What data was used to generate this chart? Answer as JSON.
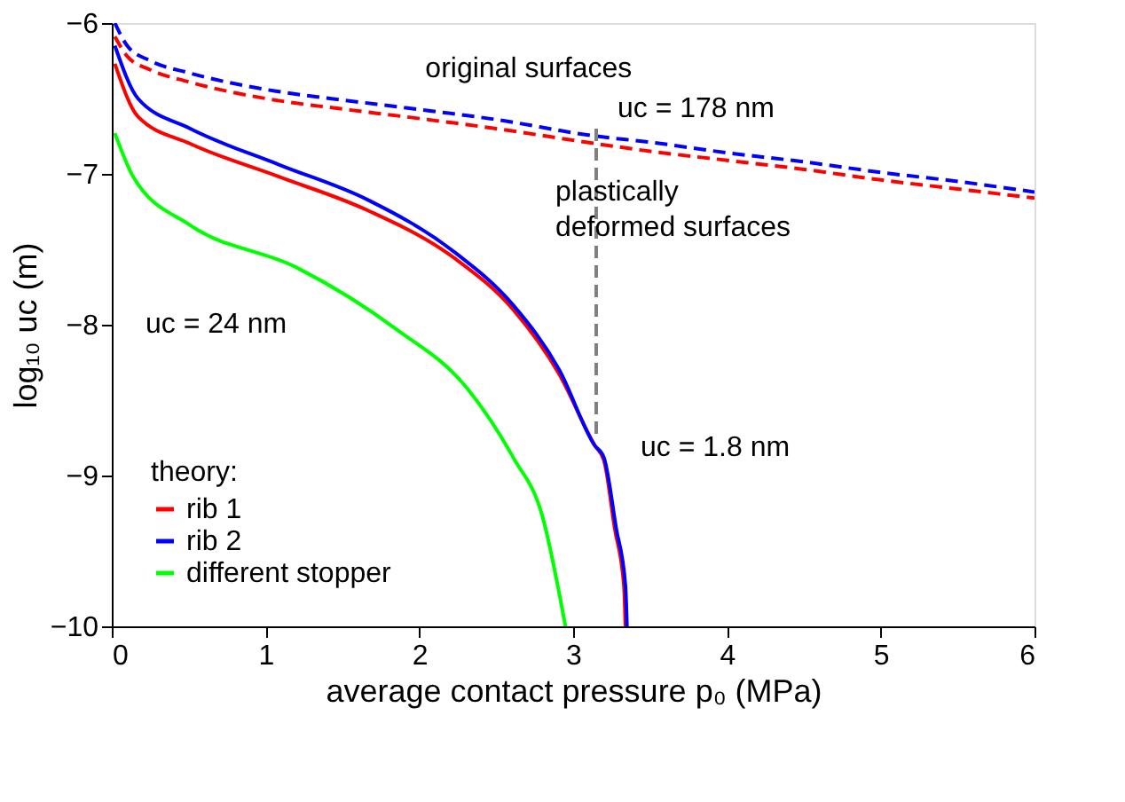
{
  "chart_data": {
    "type": "line",
    "xlabel": "average contact pressure p₀  (MPa)",
    "ylabel": "log₁₀ uc (m)",
    "legend_title": "theory:",
    "xlim": [
      0,
      6
    ],
    "xticks": [
      0,
      1,
      2,
      3,
      4,
      5,
      6
    ],
    "ylim": [
      -10,
      -6
    ],
    "yticks": [
      -10,
      -9,
      -8,
      -7,
      -6
    ],
    "grid": false,
    "legend": "bottom left",
    "marker": "none",
    "series": [
      {
        "name": "rib 1",
        "color": "#ff0000",
        "line_style": "solid",
        "x": [
          0.02,
          0.17,
          0.51,
          1.09,
          1.66,
          2.23,
          2.61,
          2.91,
          3.14,
          3.2,
          3.27,
          3.33,
          3.34
        ],
        "values": [
          -6.27,
          -6.62,
          -6.8,
          -7.02,
          -7.24,
          -7.56,
          -7.9,
          -8.33,
          -8.8,
          -8.9,
          -9.35,
          -9.73,
          -10
        ]
      },
      {
        "name": "rib 2",
        "color": "#0000ff",
        "line_style": "solid",
        "x": [
          0.02,
          0.17,
          0.51,
          1.09,
          1.66,
          2.23,
          2.61,
          2.91,
          3.14,
          3.2,
          3.28,
          3.34,
          3.35
        ],
        "values": [
          -6.15,
          -6.5,
          -6.7,
          -6.94,
          -7.17,
          -7.52,
          -7.87,
          -8.3,
          -8.8,
          -8.88,
          -9.35,
          -9.73,
          -10
        ]
      },
      {
        "name": "different stopper",
        "color": "#00ff00",
        "line_style": "solid",
        "x": [
          0.02,
          0.14,
          0.51,
          1.2,
          1.85,
          2.31,
          2.61,
          2.8,
          2.95
        ],
        "values": [
          -6.73,
          -7.02,
          -7.34,
          -7.62,
          -8.03,
          -8.42,
          -8.88,
          -9.27,
          -10
        ]
      },
      {
        "color": "#ff0000",
        "line_style": "dashed",
        "x": [
          0.02,
          0.1,
          0.25,
          0.5,
          1,
          1.5,
          1.9,
          2.5,
          3.15,
          3.5,
          4,
          4.5,
          5,
          5.5,
          6
        ],
        "values": [
          -6.09,
          -6.22,
          -6.31,
          -6.39,
          -6.5,
          -6.57,
          -6.62,
          -6.7,
          -6.8,
          -6.85,
          -6.91,
          -6.97,
          -7.04,
          -7.1,
          -7.16
        ]
      },
      {
        "color": "#0000ff",
        "line_style": "dashed",
        "x": [
          0.02,
          0.1,
          0.25,
          0.5,
          1,
          1.5,
          1.9,
          2.5,
          3.15,
          3.5,
          4,
          4.5,
          5,
          5.5,
          6
        ],
        "values": [
          -6.0,
          -6.15,
          -6.25,
          -6.33,
          -6.44,
          -6.51,
          -6.56,
          -6.64,
          -6.75,
          -6.79,
          -6.86,
          -6.92,
          -6.99,
          -7.05,
          -7.12
        ]
      },
      {
        "color": "#808080",
        "line_style": "dashed",
        "x": [
          3.15,
          3.15
        ],
        "values": [
          -6.7,
          -8.75
        ]
      }
    ],
    "annotations": [
      {
        "text": "original surfaces",
        "x": 1.9,
        "y": -6.56
      },
      {
        "text": "uc = 178 nm",
        "x": 3.15,
        "y": -6.75
      },
      "plastically deformed surfaces",
      {
        "text": "uc = 24 nm",
        "x": 1.2,
        "y": -7.62
      },
      {
        "text": "uc = 1.8 nm",
        "x": 3.15,
        "y": -8.75
      }
    ]
  }
}
